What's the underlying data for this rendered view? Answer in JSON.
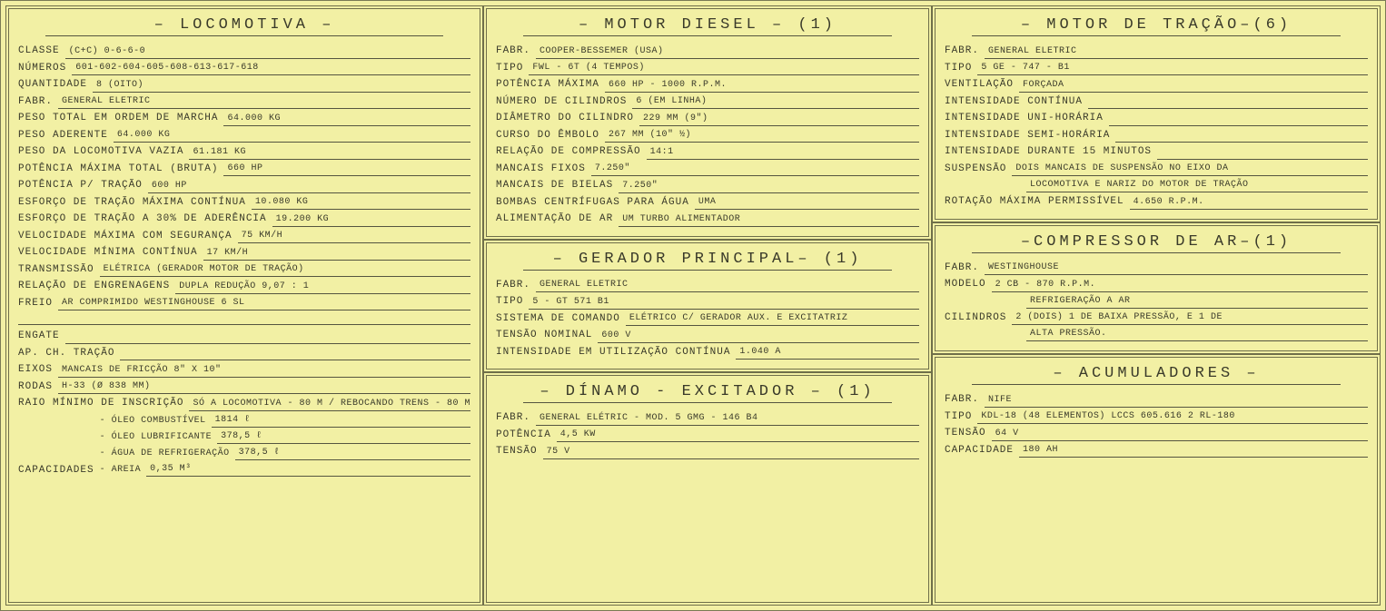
{
  "colors": {
    "bg": "#f2f0a4",
    "line": "#555540",
    "border": "#6f6f4a",
    "text": "#3a3a2a"
  },
  "locomotiva": {
    "title": "– LOCOMOTIVA –",
    "rows": [
      {
        "label": "CLASSE",
        "value": "(C+C) 0-6-6-0"
      },
      {
        "label": "NÚMEROS",
        "value": "601-602-604-605-608-613-617-618"
      },
      {
        "label": "QUANTIDADE",
        "value": "8 (OITO)"
      },
      {
        "label": "FABR.",
        "value": "GENERAL ELETRIC"
      },
      {
        "label": "PESO TOTAL EM ORDEM DE MARCHA",
        "value": "64.000 kg"
      },
      {
        "label": "PESO ADERENTE",
        "value": "64.000 kg"
      },
      {
        "label": "PESO DA LOCOMOTIVA VAZIA",
        "value": "61.181 kg"
      },
      {
        "label": "POTÊNCIA MÁXIMA TOTAL (BRUTA)",
        "value": "660 HP"
      },
      {
        "label": "POTÊNCIA P/ TRAÇÃO",
        "value": "600 HP"
      },
      {
        "label": "ESFORÇO DE TRAÇÃO MÁXIMA CONTÍNUA",
        "value": "10.080 kg"
      },
      {
        "label": "ESFORÇO DE TRAÇÃO A 30% DE ADERÊNCIA",
        "value": "19.200 kg"
      },
      {
        "label": "VELOCIDADE MÁXIMA COM SEGURANÇA",
        "value": "75 km/h"
      },
      {
        "label": "VELOCIDADE MÍNIMA CONTÍNUA",
        "value": "17 km/h"
      },
      {
        "label": "TRANSMISSÃO",
        "value": "ELÉTRICA  (GERADOR MOTOR DE TRAÇÃO)"
      },
      {
        "label": "RELAÇÃO DE ENGRENAGENS",
        "value": "DUPLA REDUÇÃO  9,07 : 1"
      },
      {
        "label": "FREIO",
        "value": "AR COMPRIMIDO WESTINGHOUSE  6 SL"
      }
    ],
    "rows2": [
      {
        "label": "ENGATE",
        "value": ""
      },
      {
        "label": "AP. CH. TRAÇÃO",
        "value": ""
      },
      {
        "label": "EIXOS",
        "value": "MANCAIS DE FRICÇÃO  8\" x 10\""
      },
      {
        "label": "RODAS",
        "value": "H-33 (Ø 838 mm)"
      },
      {
        "label": "RAIO MÍNIMO DE INSCRIÇÃO",
        "value": "SÓ A LOCOMOTIVA - 80 m / REBOCANDO TRENS - 80 m"
      }
    ],
    "caps_label": "CAPACIDADES",
    "caps": [
      {
        "label": "- ÓLEO COMBUSTÍVEL",
        "value": "1814 ℓ"
      },
      {
        "label": "- ÓLEO LUBRIFICANTE",
        "value": "378,5 ℓ"
      },
      {
        "label": "- ÁGUA DE REFRIGERAÇÃO",
        "value": "378,5 ℓ"
      },
      {
        "label": "- AREIA",
        "value": "0,35 m³"
      }
    ]
  },
  "motor_diesel": {
    "title": "– MOTOR   DIESEL – (1)",
    "rows": [
      {
        "label": "FABR.",
        "value": "COOPER-BESSEMER (USA)"
      },
      {
        "label": "TIPO",
        "value": "FWL - 6T (4 TEMPOS)"
      },
      {
        "label": "POTÊNCIA MÁXIMA",
        "value": "660 HP - 1000 R.P.M."
      },
      {
        "label": "NÚMERO DE CILINDROS",
        "value": "6 (EM LINHA)"
      },
      {
        "label": "DIÂMETRO DO CILINDRO",
        "value": "229 mm  (9\")"
      },
      {
        "label": "CURSO DO ÊMBOLO",
        "value": "267 mm  (10\" ½)"
      },
      {
        "label": "RELAÇÃO DE COMPRESSÃO",
        "value": "14:1"
      },
      {
        "label": "MANCAIS FIXOS",
        "value": "7.250\""
      },
      {
        "label": "MANCAIS DE BIELAS",
        "value": "7.250\""
      },
      {
        "label": "BOMBAS CENTRÍFUGAS PARA ÁGUA",
        "value": "UMA"
      },
      {
        "label": "ALIMENTAÇÃO DE AR",
        "value": "UM TURBO ALIMENTADOR"
      }
    ]
  },
  "gerador": {
    "title": "– GERADOR   PRINCIPAL– (1)",
    "rows": [
      {
        "label": "FABR.",
        "value": "GENERAL ELETRIC"
      },
      {
        "label": "TIPO",
        "value": "5 - GT 571 B1"
      },
      {
        "label": "SISTEMA DE COMANDO",
        "value": "ELÉTRICO C/ GERADOR AUX. E EXCITATRIZ"
      },
      {
        "label": "TENSÃO NOMINAL",
        "value": "600 V"
      },
      {
        "label": "INTENSIDADE EM UTILIZAÇÃO CONTÍNUA",
        "value": "1.040 A"
      }
    ]
  },
  "dinamo": {
    "title": "– DÍNAMO - EXCITADOR – (1)",
    "rows": [
      {
        "label": "FABR.",
        "value": "GENERAL ELÉTRIC - MOD. 5 GMG - 146 B4"
      },
      {
        "label": "POTÊNCIA",
        "value": "4,5 KW"
      },
      {
        "label": "TENSÃO",
        "value": "75 V"
      }
    ]
  },
  "motor_tracao": {
    "title": "– MOTOR  DE TRAÇÃO–(6)",
    "rows": [
      {
        "label": "FABR.",
        "value": "GENERAL ELETRIC"
      },
      {
        "label": "TIPO",
        "value": "5 GE - 747 - B1"
      },
      {
        "label": "VENTILAÇÃO",
        "value": "FORÇADA"
      },
      {
        "label": "INTENSIDADE CONTÍNUA",
        "value": ""
      },
      {
        "label": "INTENSIDADE UNI-HORÁRIA",
        "value": ""
      },
      {
        "label": "INTENSIDADE SEMI-HORÁRIA",
        "value": ""
      },
      {
        "label": "INTENSIDADE DURANTE 15 minutos",
        "value": ""
      },
      {
        "label": "SUSPENSÃO",
        "value": "DOIS MANCAIS DE SUSPENSÃO NO EIXO DA"
      }
    ],
    "extra_line": "LOCOMOTIVA E NARIZ DO MOTOR DE TRAÇÃO",
    "last": {
      "label": "ROTAÇÃO MÁXIMA PERMISSÍVEL",
      "value": "4.650 R.P.M."
    }
  },
  "compressor": {
    "title": "–COMPRESSOR   DE AR–(1)",
    "rows": [
      {
        "label": "FABR.",
        "value": "WESTINGHOUSE"
      },
      {
        "label": "MODELO",
        "value": "2 CB - 870 R.P.M."
      }
    ],
    "extra1": "REFRIGERAÇÃO A AR",
    "rows2": [
      {
        "label": "CILINDROS",
        "value": "2 (DOIS)  1 DE BAIXA PRESSÃO, E 1 DE"
      }
    ],
    "extra2": "ALTA PRESSÃO."
  },
  "acumuladores": {
    "title": "– ACUMULADORES –",
    "rows": [
      {
        "label": "FABR.",
        "value": "NIFE"
      },
      {
        "label": "TIPO",
        "value": "KDL-18 (48 ELEMENTOS) LCCS 605.616 2 RL-180"
      },
      {
        "label": "TENSÃO",
        "value": "64 V"
      },
      {
        "label": "CAPACIDADE",
        "value": "180 AH"
      }
    ]
  }
}
